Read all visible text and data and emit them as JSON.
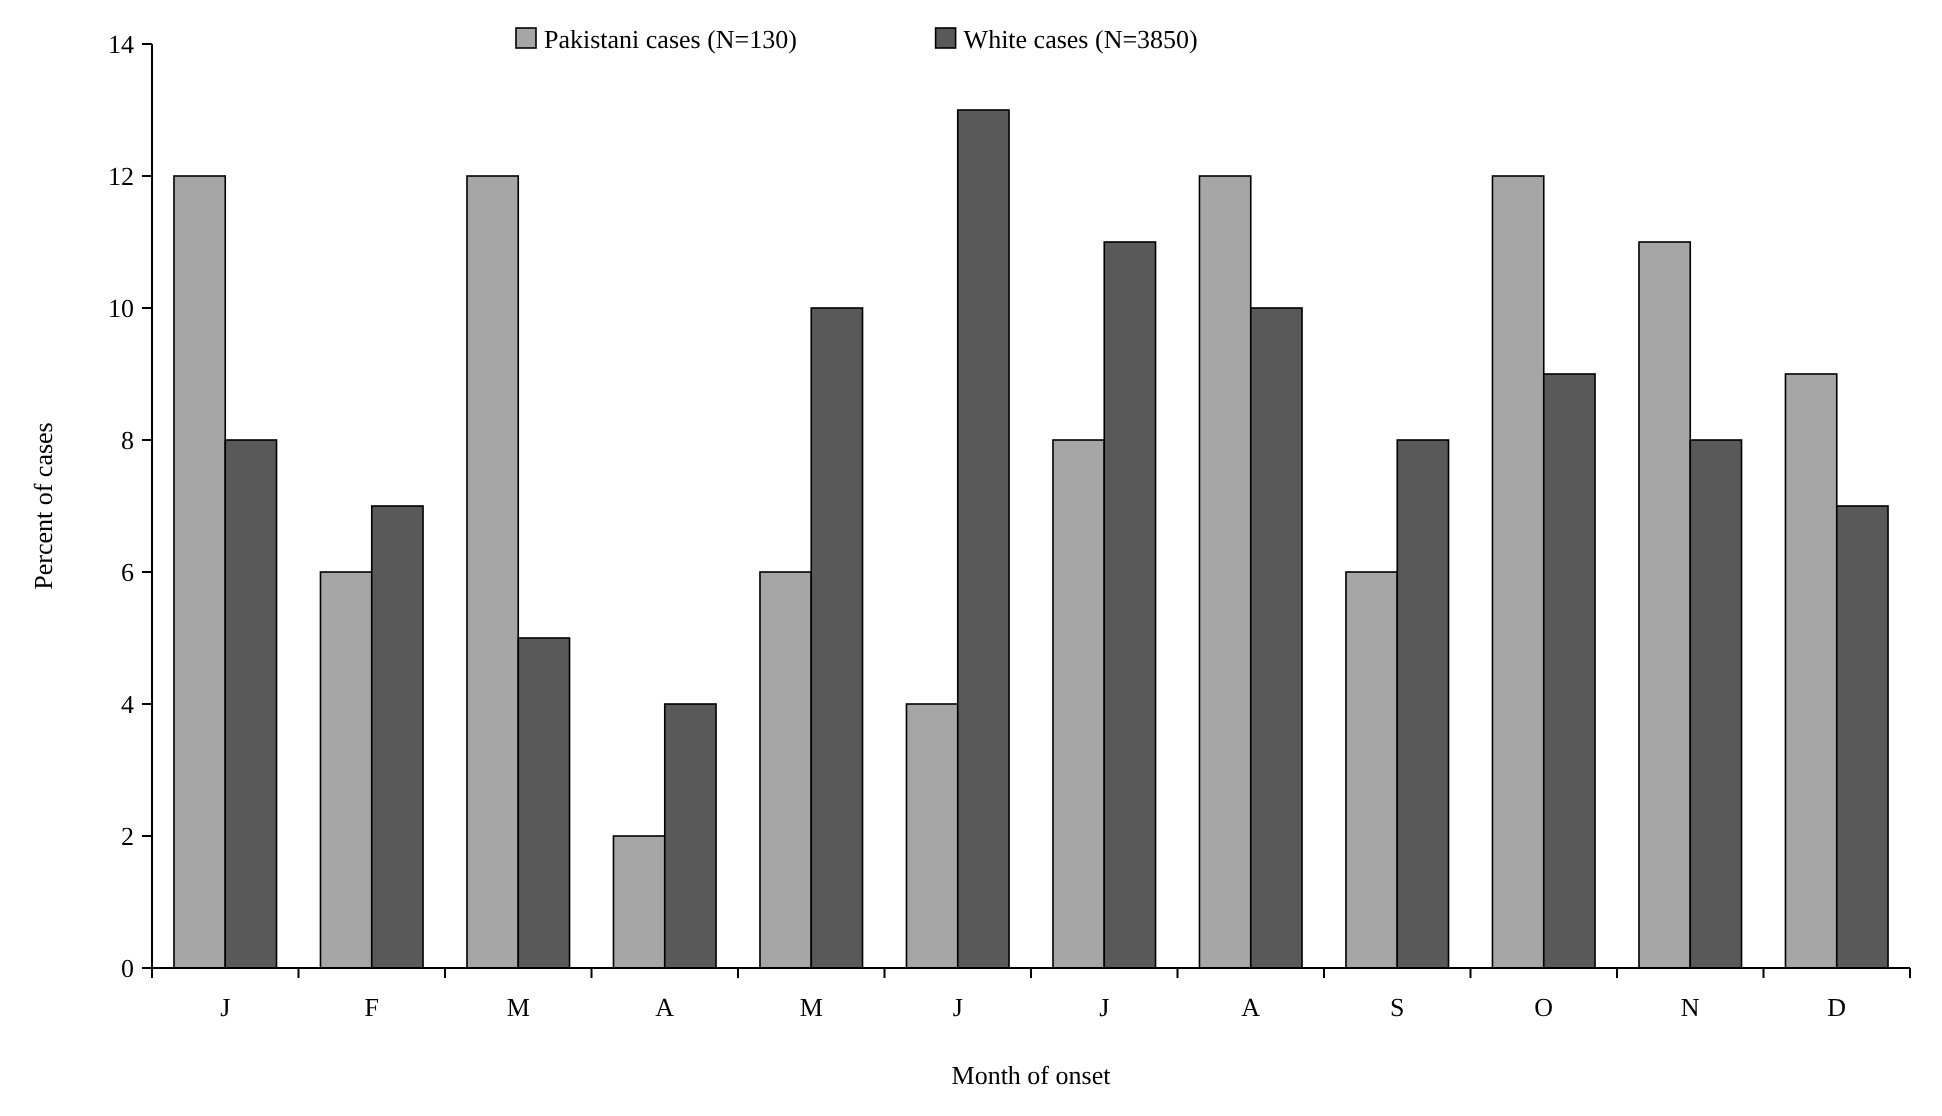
{
  "chart_data": {
    "type": "bar",
    "xlabel": "Month of onset",
    "ylabel": "Percent of cases",
    "categories": [
      "J",
      "F",
      "M",
      "A",
      "M",
      "J",
      "J",
      "A",
      "S",
      "O",
      "N",
      "D"
    ],
    "series": [
      {
        "name": "Pakistani cases (N=130)",
        "color": "#a6a6a6",
        "values": [
          12,
          6,
          12,
          2,
          6,
          4,
          8,
          12,
          6,
          12,
          11,
          9
        ]
      },
      {
        "name": "White cases (N=3850)",
        "color": "#595959",
        "values": [
          8,
          7,
          5,
          4,
          10,
          13,
          11,
          10,
          8,
          9,
          8,
          7
        ]
      }
    ],
    "ylim": [
      0,
      14
    ],
    "yticks": [
      0,
      2,
      4,
      6,
      8,
      10,
      12,
      14
    ],
    "grid": false,
    "legend": "top"
  }
}
